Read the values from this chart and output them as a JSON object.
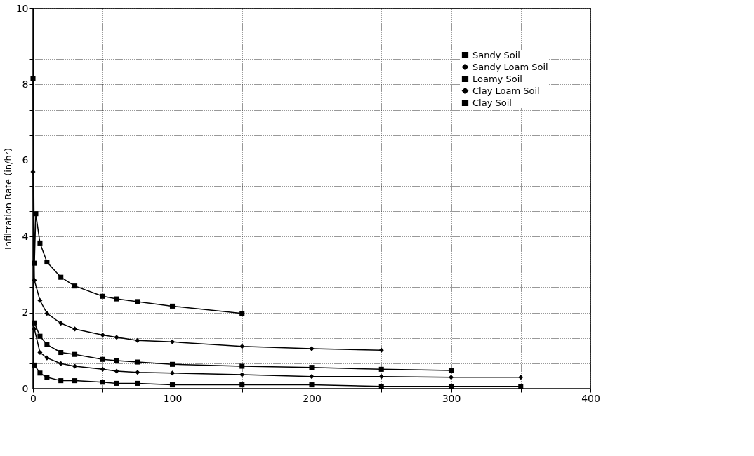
{
  "chart_data": {
    "type": "line",
    "ylabel": "Infiltration Rate (in/hr)",
    "xlim": [
      0,
      400
    ],
    "ylim": [
      0,
      10
    ],
    "xticks": [
      0,
      {
        "value": 50,
        "label": null
      },
      100,
      {
        "value": 150,
        "label": null
      },
      200,
      {
        "value": 250,
        "label": null
      },
      300,
      {
        "value": 350,
        "label": null
      },
      400
    ],
    "yticks": [
      0,
      {
        "value": 0.667,
        "label": null
      },
      {
        "value": 1.333,
        "label": null
      },
      2,
      {
        "value": 2.667,
        "label": null
      },
      {
        "value": 3.333,
        "label": null
      },
      4,
      {
        "value": 4.667,
        "label": null
      },
      {
        "value": 5.333,
        "label": null
      },
      6,
      {
        "value": 6.667,
        "label": null
      },
      {
        "value": 7.333,
        "label": null
      },
      8,
      {
        "value": 8.667,
        "label": null
      },
      {
        "value": 9.333,
        "label": null
      },
      10
    ],
    "grid": true,
    "legend": "top right",
    "line_style": "solid",
    "series": [
      {
        "name": "Sandy Soil",
        "color": "#000000",
        "marker": "square",
        "x": [
          0,
          1,
          2,
          5,
          10,
          20,
          30,
          50,
          60,
          75,
          100,
          150
        ],
        "values": [
          8.15,
          3.3,
          4.6,
          3.83,
          3.33,
          2.93,
          2.7,
          2.43,
          2.36,
          2.29,
          2.17,
          1.98
        ]
      },
      {
        "name": "Sandy Loam Soil",
        "color": "#000000",
        "marker": "diamond",
        "x": [
          0,
          1,
          5,
          10,
          20,
          30,
          50,
          60,
          75,
          100,
          150,
          200,
          250
        ],
        "values": [
          5.7,
          2.85,
          2.32,
          1.98,
          1.72,
          1.57,
          1.41,
          1.35,
          1.27,
          1.23,
          1.11,
          1.05,
          1.01
        ]
      },
      {
        "name": "Loamy Soil",
        "color": "#000000",
        "marker": "square",
        "x": [
          1,
          5,
          10,
          20,
          30,
          50,
          60,
          75,
          100,
          150,
          200,
          250,
          300
        ],
        "values": [
          1.73,
          1.38,
          1.16,
          0.95,
          0.9,
          0.77,
          0.74,
          0.7,
          0.64,
          0.59,
          0.56,
          0.51,
          0.48
        ]
      },
      {
        "name": "Clay Loam Soil",
        "color": "#000000",
        "marker": "diamond",
        "x": [
          1,
          5,
          10,
          20,
          30,
          50,
          60,
          75,
          100,
          150,
          200,
          250,
          300,
          350
        ],
        "values": [
          1.57,
          0.95,
          0.81,
          0.66,
          0.59,
          0.51,
          0.46,
          0.43,
          0.41,
          0.37,
          0.32,
          0.32,
          0.3,
          0.3
        ]
      },
      {
        "name": "Clay Soil",
        "color": "#000000",
        "marker": "square",
        "x": [
          1,
          5,
          10,
          20,
          30,
          50,
          60,
          75,
          100,
          150,
          200,
          250,
          300,
          350
        ],
        "values": [
          0.62,
          0.41,
          0.3,
          0.21,
          0.21,
          0.17,
          0.14,
          0.14,
          0.1,
          0.1,
          0.1,
          0.06,
          0.06,
          0.06
        ]
      }
    ]
  }
}
